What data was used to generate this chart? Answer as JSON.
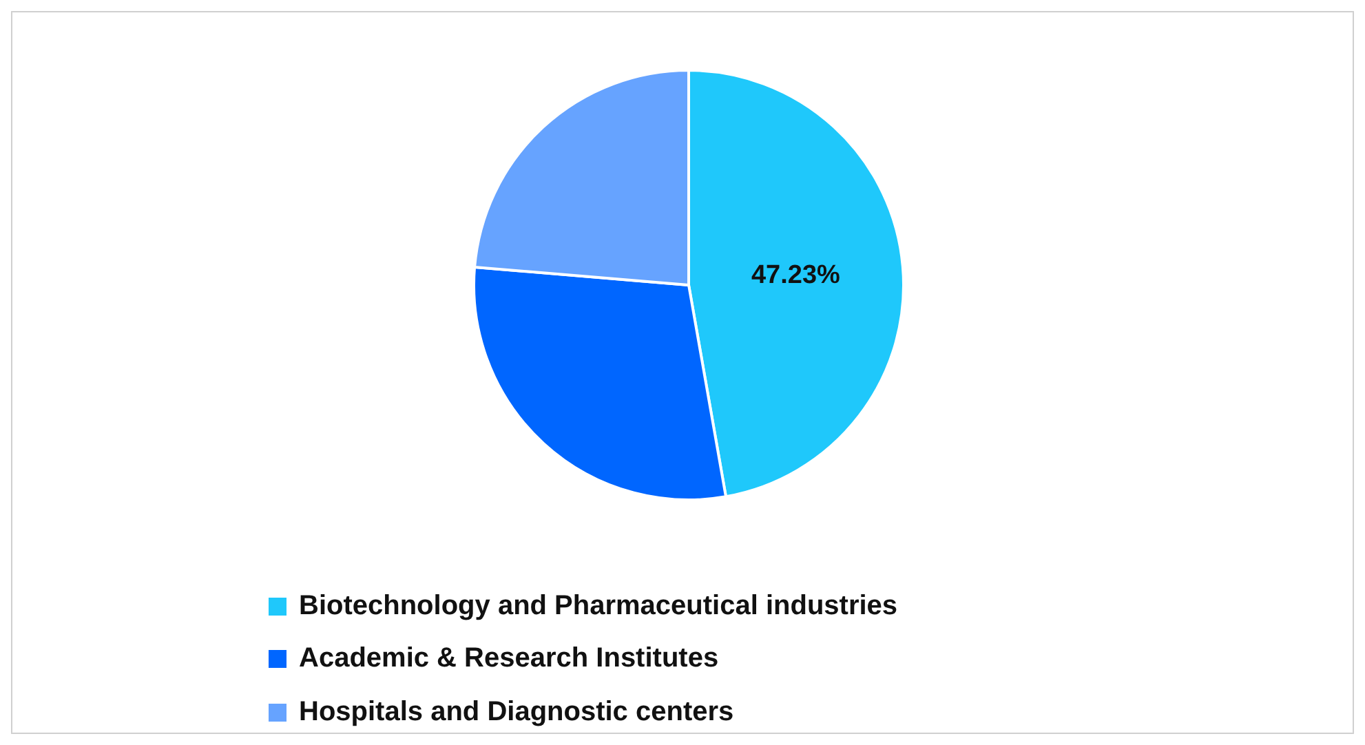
{
  "chart_data": {
    "type": "pie",
    "categories": [
      "Biotechnology and Pharmaceutical industries",
      "Academic & Research Institutes",
      "Hospitals and Diagnostic centers"
    ],
    "values": [
      47.23,
      29.1,
      23.67
    ],
    "colors": [
      "#1fc8fb",
      "#0066ff",
      "#66a3ff"
    ],
    "value_labels": [
      "47.23%",
      null,
      null
    ],
    "legend": "bottom"
  }
}
